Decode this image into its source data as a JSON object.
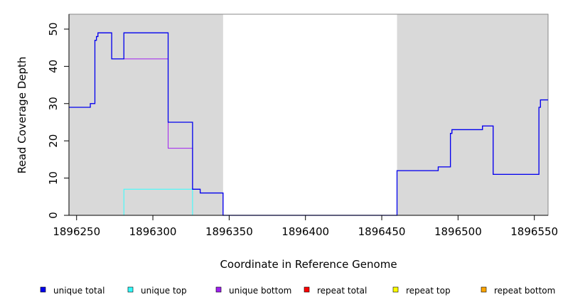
{
  "chart_data": {
    "type": "line",
    "title": "",
    "xlabel": "Coordinate in Reference Genome",
    "ylabel": "Read Coverage Depth",
    "xlim": [
      1896245,
      1896559
    ],
    "ylim": [
      0,
      54
    ],
    "x_ticks": [
      1896250,
      1896300,
      1896350,
      1896400,
      1896450,
      1896500,
      1896550
    ],
    "y_ticks": [
      0,
      10,
      20,
      30,
      40,
      50
    ],
    "grid": false,
    "shaded_regions": [
      {
        "x_start": 1896245,
        "x_end": 1896346,
        "color": "#d9d9d9"
      },
      {
        "x_start": 1896460,
        "x_end": 1896559,
        "color": "#d9d9d9"
      }
    ],
    "legend_position": "bottom",
    "series": [
      {
        "name": "unique total",
        "color": "#0000ee",
        "step": true,
        "points": [
          [
            1896245,
            29
          ],
          [
            1896259,
            29
          ],
          [
            1896259,
            30
          ],
          [
            1896262,
            30
          ],
          [
            1896262,
            47
          ],
          [
            1896263,
            47
          ],
          [
            1896263,
            48
          ],
          [
            1896264,
            48
          ],
          [
            1896264,
            49
          ],
          [
            1896273,
            49
          ],
          [
            1896273,
            42
          ],
          [
            1896281,
            42
          ],
          [
            1896281,
            49
          ],
          [
            1896310,
            49
          ],
          [
            1896310,
            25
          ],
          [
            1896326,
            25
          ],
          [
            1896326,
            7
          ],
          [
            1896331,
            7
          ],
          [
            1896331,
            6
          ],
          [
            1896346,
            6
          ],
          [
            1896346,
            0
          ],
          [
            1896460,
            0
          ],
          [
            1896460,
            12
          ],
          [
            1896487,
            12
          ],
          [
            1896487,
            13
          ],
          [
            1896495,
            13
          ],
          [
            1896495,
            22
          ],
          [
            1896496,
            22
          ],
          [
            1896496,
            23
          ],
          [
            1896516,
            23
          ],
          [
            1896516,
            24
          ],
          [
            1896523,
            24
          ],
          [
            1896523,
            11
          ],
          [
            1896553,
            11
          ],
          [
            1896553,
            29
          ],
          [
            1896554,
            29
          ],
          [
            1896554,
            31
          ],
          [
            1896559,
            31
          ]
        ]
      },
      {
        "name": "unique top",
        "color": "#33ffff",
        "step": true,
        "points": [
          [
            1896245,
            0
          ],
          [
            1896281,
            0
          ],
          [
            1896281,
            7
          ],
          [
            1896326,
            7
          ],
          [
            1896326,
            0
          ],
          [
            1896346,
            0
          ]
        ]
      },
      {
        "name": "unique bottom",
        "color": "#a020f0",
        "step": true,
        "points": [
          [
            1896245,
            29
          ],
          [
            1896259,
            29
          ],
          [
            1896259,
            30
          ],
          [
            1896262,
            30
          ],
          [
            1896262,
            47
          ],
          [
            1896263,
            47
          ],
          [
            1896263,
            48
          ],
          [
            1896264,
            48
          ],
          [
            1896264,
            49
          ],
          [
            1896273,
            49
          ],
          [
            1896273,
            42
          ],
          [
            1896310,
            42
          ],
          [
            1896310,
            18
          ],
          [
            1896326,
            18
          ],
          [
            1896326,
            7
          ],
          [
            1896331,
            7
          ],
          [
            1896331,
            6
          ],
          [
            1896346,
            6
          ],
          [
            1896346,
            0
          ],
          [
            1896460,
            0
          ],
          [
            1896460,
            12
          ],
          [
            1896487,
            12
          ],
          [
            1896487,
            13
          ],
          [
            1896495,
            13
          ],
          [
            1896495,
            22
          ],
          [
            1896496,
            22
          ],
          [
            1896496,
            23
          ],
          [
            1896516,
            23
          ],
          [
            1896516,
            24
          ],
          [
            1896523,
            24
          ],
          [
            1896523,
            11
          ],
          [
            1896553,
            11
          ],
          [
            1896553,
            29
          ],
          [
            1896554,
            29
          ],
          [
            1896554,
            31
          ],
          [
            1896559,
            31
          ]
        ]
      },
      {
        "name": "repeat total",
        "color": "#ff0000",
        "step": true,
        "points": [
          [
            1896245,
            0
          ],
          [
            1896559,
            0
          ]
        ]
      },
      {
        "name": "repeat top",
        "color": "#ffff00",
        "step": true,
        "points": [
          [
            1896245,
            0
          ],
          [
            1896559,
            0
          ]
        ]
      },
      {
        "name": "repeat bottom",
        "color": "#ffa500",
        "step": true,
        "points": [
          [
            1896245,
            0
          ],
          [
            1896346,
            0
          ]
        ]
      }
    ]
  }
}
